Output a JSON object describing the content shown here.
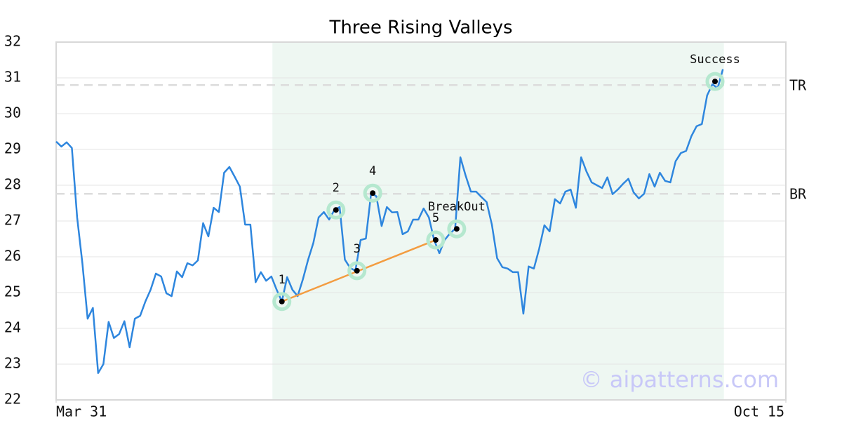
{
  "chart_data": {
    "type": "line",
    "title": "Three Rising Valleys",
    "xlim": [
      0,
      139
    ],
    "xticks": [
      {
        "value": 0,
        "label": "Mar 31"
      },
      {
        "value": 139,
        "label": "Oct 15"
      }
    ],
    "ylim": [
      22,
      32
    ],
    "yticks": [
      22,
      23,
      24,
      25,
      26,
      27,
      28,
      29,
      30,
      31,
      32
    ],
    "grid": true,
    "color": "#2e86de",
    "values": [
      29.22,
      29.08,
      29.2,
      29.04,
      27.1,
      25.82,
      24.27,
      24.57,
      22.75,
      23.0,
      24.18,
      23.73,
      23.84,
      24.2,
      23.47,
      24.27,
      24.35,
      24.75,
      25.08,
      25.53,
      25.45,
      24.98,
      24.9,
      25.59,
      25.43,
      25.82,
      25.76,
      25.9,
      26.94,
      26.57,
      27.37,
      27.25,
      28.35,
      28.51,
      28.24,
      27.96,
      26.9,
      26.9,
      25.29,
      25.57,
      25.33,
      25.45,
      25.08,
      24.75,
      25.43,
      25.08,
      24.9,
      25.37,
      25.92,
      26.39,
      27.1,
      27.25,
      27.04,
      27.31,
      27.39,
      25.92,
      25.69,
      25.61,
      26.47,
      26.51,
      27.78,
      27.69,
      26.86,
      27.39,
      27.24,
      27.25,
      26.63,
      26.71,
      27.04,
      27.04,
      27.35,
      27.1,
      26.47,
      26.1,
      26.47,
      26.65,
      26.78,
      28.78,
      28.27,
      27.82,
      27.82,
      27.67,
      27.53,
      26.9,
      25.96,
      25.71,
      25.67,
      25.57,
      25.57,
      24.41,
      25.73,
      25.67,
      26.22,
      26.88,
      26.71,
      27.61,
      27.49,
      27.82,
      27.88,
      27.37,
      28.78,
      28.39,
      28.08,
      28.0,
      27.92,
      28.22,
      27.75,
      27.88,
      28.04,
      28.18,
      27.8,
      27.63,
      27.76,
      28.31,
      27.96,
      28.35,
      28.12,
      28.08,
      28.67,
      28.9,
      28.96,
      29.37,
      29.65,
      29.71,
      30.51,
      30.82,
      30.71,
      31.24
    ],
    "highlight": {
      "x": [
        41.2,
        127.2
      ],
      "color": "#eef7f2"
    },
    "hlines": [
      {
        "label": "TR",
        "value": 30.8
      },
      {
        "label": "BR",
        "value": 27.76
      }
    ],
    "points": {
      "x": [
        43,
        53.3,
        57.3,
        60.3,
        72.3,
        76.3,
        125.5
      ],
      "y": [
        24.75,
        27.31,
        25.61,
        27.78,
        26.47,
        26.78,
        30.9
      ],
      "labels": [
        "1",
        "2",
        "3",
        "4",
        "5",
        "BreakOut",
        "Success"
      ],
      "color": "#b5e8cf"
    },
    "trendline": {
      "x": [
        43,
        72.3
      ],
      "y": [
        24.75,
        26.47
      ],
      "color": "#f39c40"
    },
    "watermark": "© aipatterns.com"
  }
}
